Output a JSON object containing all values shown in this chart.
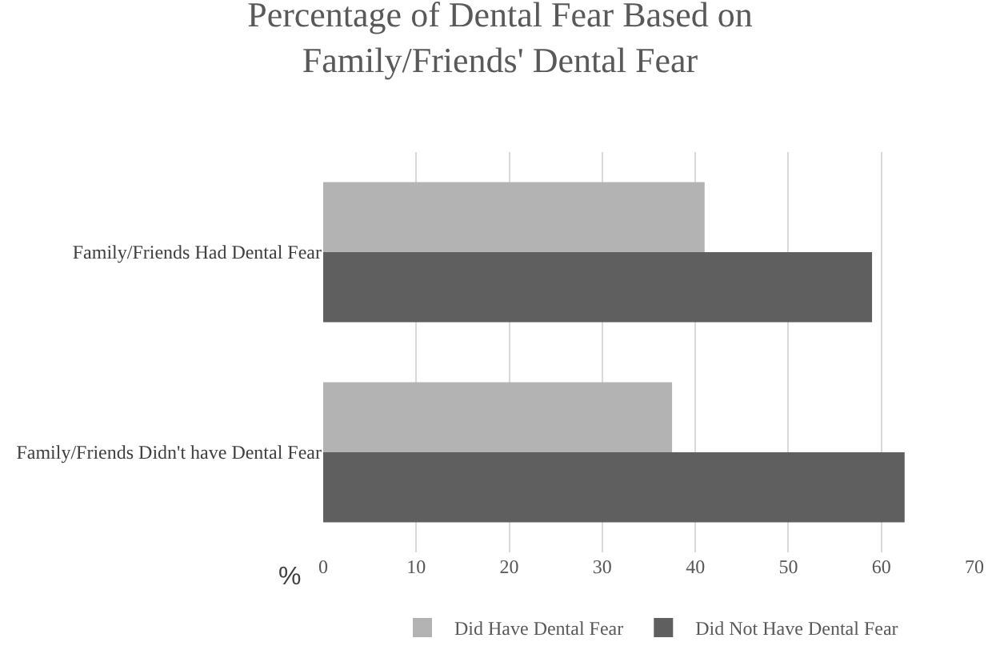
{
  "chart_data": {
    "type": "bar",
    "orientation": "horizontal",
    "title": "Percentage of Dental Fear Based on\nFamily/Friends' Dental Fear",
    "xlabel": "%",
    "categories": [
      "Family/Friends Had Dental Fear",
      "Family/Friends Didn't have Dental Fear"
    ],
    "series": [
      {
        "name": "Did Have Dental Fear",
        "color": "#b3b3b3",
        "values": [
          41,
          37.5
        ]
      },
      {
        "name": "Did Not Have Dental Fear",
        "color": "#5f5f5f",
        "values": [
          59,
          62.5
        ]
      }
    ],
    "xlim": [
      0,
      70
    ],
    "xticks": [
      0,
      10,
      20,
      30,
      40,
      50,
      60,
      70
    ],
    "grid": "x",
    "legend": "bottom"
  }
}
